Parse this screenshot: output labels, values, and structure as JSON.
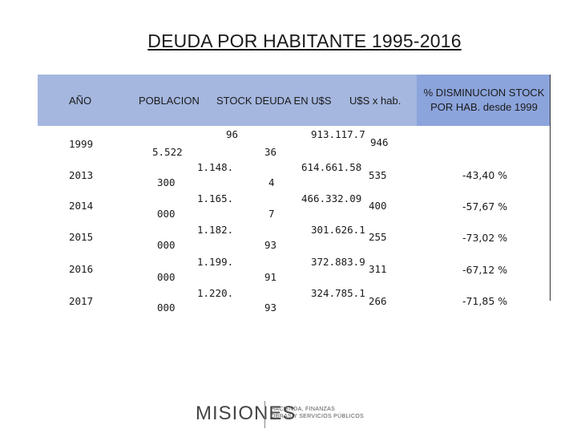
{
  "title": "DEUDA POR HABITANTE 1995-2016",
  "headers": {
    "anio": "AÑO",
    "poblacion": "POBLACION",
    "stock": "STOCK DEUDA EN U$S",
    "usxhab": "U$S x hab.",
    "disminucion": "% DISMINUCION STOCK POR HAB. desde 1999"
  },
  "rows": [
    {
      "year": "1999",
      "pop_a": "5.522",
      "pop_b": "",
      "stock_a": "96",
      "stock_b": "36",
      "usd_a": "913.117.7",
      "usd_b": "946",
      "pct": ""
    },
    {
      "year": "2013",
      "pop_a": "300",
      "pop_b": "",
      "stock_a": "1.148.",
      "stock_b": "4",
      "usd_a": "614.661.58",
      "usd_b": "535",
      "pct": "-43,40 %"
    },
    {
      "year": "2014",
      "pop_a": "000",
      "pop_b": "",
      "stock_a": "1.165.",
      "stock_b": "7",
      "usd_a": "466.332.09",
      "usd_b": "400",
      "pct": "-57,67 %"
    },
    {
      "year": "2015",
      "pop_a": "000",
      "pop_b": "",
      "stock_a": "1.182.",
      "stock_b": "93",
      "usd_a": "301.626.1",
      "usd_b": "255",
      "pct": "-73,02 %"
    },
    {
      "year": "2016",
      "pop_a": "000",
      "pop_b": "",
      "stock_a": "1.199.",
      "stock_b": "91",
      "usd_a": "372.883.9",
      "usd_b": "311",
      "pct": "-67,12 %"
    },
    {
      "year": "2017",
      "pop_a": "000",
      "pop_b": "",
      "stock_a": "1.220.",
      "stock_b": "93",
      "usd_a": "324.785.1",
      "usd_b": "266",
      "pct": "-71,85 %"
    }
  ],
  "footer": {
    "logo": "MISIONES",
    "subtitle_line1": "HACIENDA, FINANZAS",
    "subtitle_line2": "OBRAS Y SERVICIOS PÚBLICOS"
  }
}
